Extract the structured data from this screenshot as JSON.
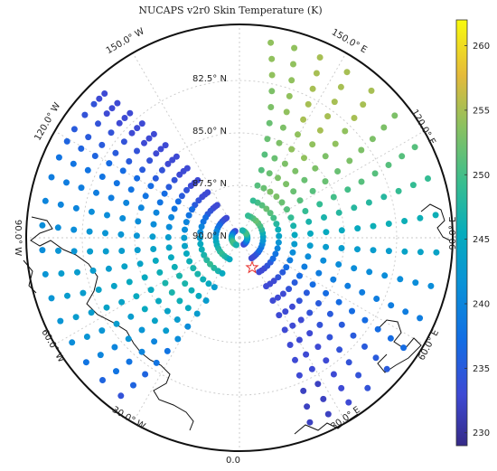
{
  "title": "NUCAPS v2r0 Skin Temperature (K)",
  "latitude_labels": [
    "82.5° N",
    "85.0° N",
    "87.5° N",
    "90.0° N"
  ],
  "longitude_labels": [
    "0.0",
    "30.0° E",
    "60.0° E",
    "90.0° E",
    "120.0° E",
    "150.0° E",
    "150.0° W",
    "120.0° W",
    "90.0° W",
    "60.0° W",
    "30.0° W"
  ],
  "marker": {
    "type": "star",
    "color": "#e8322e"
  },
  "colorbar": {
    "colormap": "parula",
    "min": 229,
    "max": 262,
    "ticks": [
      230,
      235,
      240,
      245,
      250,
      255,
      260
    ]
  },
  "swath_scans": [
    {
      "lon_start": 200,
      "lon_end": 224,
      "vals": [
        232,
        232,
        233,
        233,
        233,
        233,
        233,
        233,
        233,
        233,
        233,
        233,
        233
      ]
    },
    {
      "lon_start": 206,
      "lon_end": 226,
      "vals": [
        232,
        232,
        233,
        233,
        233,
        233,
        233,
        233,
        233,
        233,
        233,
        233,
        233
      ]
    },
    {
      "lon_start": 213,
      "lon_end": 228,
      "vals": [
        233,
        233,
        233,
        233,
        233,
        233,
        233,
        233,
        233,
        233,
        233,
        233,
        234
      ]
    },
    {
      "lon_start": 220,
      "lon_end": 232,
      "vals": [
        234,
        234,
        234,
        234,
        234,
        234,
        234,
        234,
        234,
        234,
        234,
        234,
        234
      ]
    },
    {
      "lon_start": 228,
      "lon_end": 237,
      "vals": [
        235,
        235,
        235,
        235,
        235,
        235,
        235,
        235,
        235,
        235,
        235,
        235,
        235
      ]
    },
    {
      "lon_start": 236,
      "lon_end": 241,
      "vals": [
        237,
        237,
        237,
        237,
        237,
        237,
        237,
        237,
        237,
        237,
        237,
        236,
        236
      ]
    },
    {
      "lon_start": 246,
      "lon_end": 246,
      "vals": [
        239,
        239,
        239,
        239,
        239,
        238,
        238,
        238,
        238,
        238,
        238,
        238,
        238
      ]
    },
    {
      "lon_start": 256,
      "lon_end": 252,
      "vals": [
        241,
        241,
        241,
        241,
        241,
        240,
        240,
        240,
        240,
        240,
        239,
        239,
        239
      ]
    },
    {
      "lon_start": 266,
      "lon_end": 259,
      "vals": [
        244,
        244,
        243,
        243,
        243,
        242,
        242,
        241,
        241,
        241,
        241,
        240,
        240
      ]
    },
    {
      "lon_start": 277,
      "lon_end": 266,
      "vals": [
        246,
        246,
        246,
        245,
        245,
        244,
        244,
        243,
        243,
        242,
        242,
        241,
        241
      ]
    },
    {
      "lon_start": 288,
      "lon_end": 273,
      "vals": [
        249,
        249,
        248,
        248,
        247,
        246,
        245,
        245,
        244,
        243,
        243,
        242,
        241
      ]
    },
    {
      "lon_start": 298,
      "lon_end": 280,
      "vals": [
        251,
        251,
        251,
        250,
        249,
        248,
        247,
        246,
        245,
        244,
        243,
        243,
        242
      ]
    },
    {
      "lon_start": 309,
      "lon_end": 287,
      "vals": [
        253,
        253,
        253,
        252,
        251,
        250,
        249,
        247,
        246,
        245,
        244,
        243,
        242
      ]
    },
    {
      "lon_start": 319,
      "lon_end": 294,
      "vals": [
        255,
        255,
        254,
        253,
        252,
        251,
        250,
        248,
        247,
        245,
        244,
        243,
        242
      ]
    },
    {
      "lon_start": 328,
      "lon_end": 301,
      "vals": [
        255,
        255,
        255,
        254,
        253,
        252,
        250,
        249,
        247,
        245,
        243,
        242,
        241
      ]
    },
    {
      "lon_start": 337,
      "lon_end": 308,
      "vals": [
        255,
        255,
        255,
        254,
        253,
        251,
        250,
        248,
        246,
        244,
        242,
        240,
        238
      ]
    },
    {
      "lon_start": 345,
      "lon_end": 315,
      "vals": [
        254,
        254,
        254,
        253,
        252,
        250,
        249,
        247,
        245,
        243,
        240,
        238,
        236
      ]
    },
    {
      "lon_start": 352,
      "lon_end": 322,
      "vals": [
        254,
        254,
        253,
        252,
        251,
        249,
        247,
        245,
        243,
        241,
        238,
        236,
        234
      ]
    }
  ]
}
